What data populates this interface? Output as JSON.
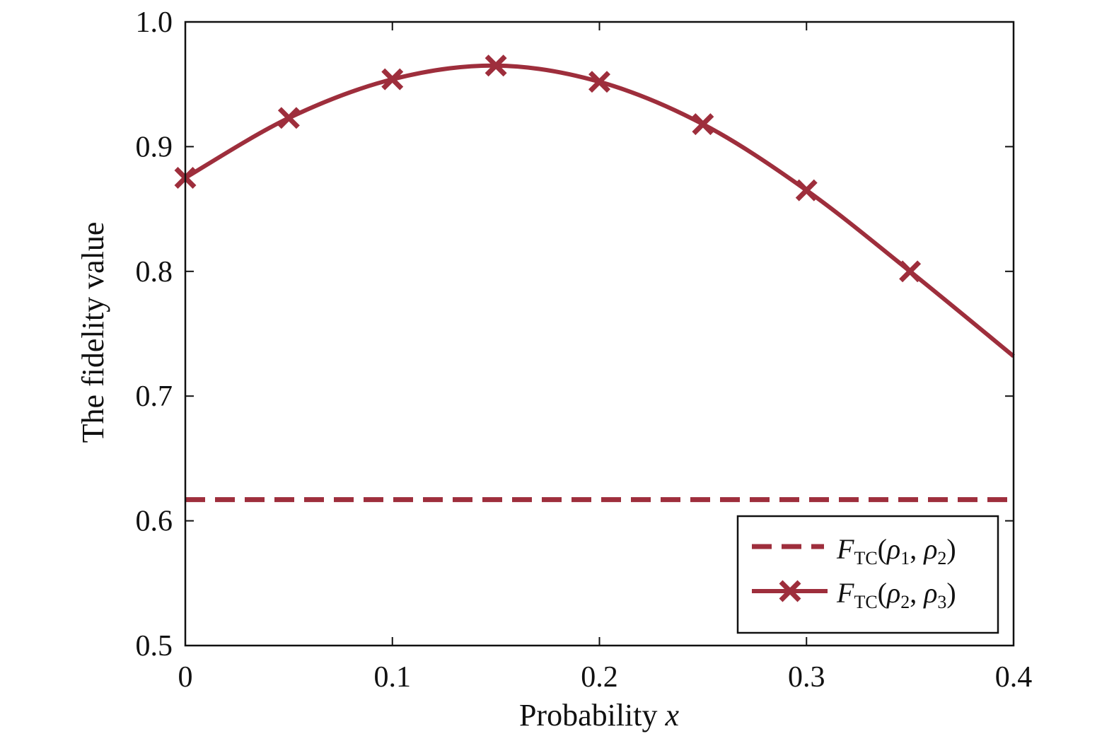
{
  "chart_data": {
    "type": "line",
    "xlabel": "Probability",
    "xlabel_var": "x",
    "ylabel": "The fidelity value",
    "xlim": [
      0,
      0.4
    ],
    "ylim": [
      0.5,
      1.0
    ],
    "x_ticks": [
      "0",
      "0.1",
      "0.2",
      "0.3",
      "0.4"
    ],
    "y_ticks": [
      "0.5",
      "0.6",
      "0.7",
      "0.8",
      "0.9",
      "1.0"
    ],
    "grid": false,
    "legend_position": "bottom-right",
    "series_color": "#9e2e3c",
    "series": [
      {
        "legend": {
          "F": "F",
          "sub": "TC",
          "a": "ρ",
          "a_sub": "1",
          "b": "ρ",
          "b_sub": "2"
        },
        "style": "dashed",
        "x": [
          0,
          0.4
        ],
        "values": [
          0.617,
          0.617
        ]
      },
      {
        "legend": {
          "F": "F",
          "sub": "TC",
          "a": "ρ",
          "a_sub": "2",
          "b": "ρ",
          "b_sub": "3"
        },
        "style": "solid",
        "marker": "x",
        "x": [
          0,
          0.05,
          0.1,
          0.15,
          0.2,
          0.25,
          0.3,
          0.35,
          0.4
        ],
        "values": [
          0.875,
          0.923,
          0.954,
          0.965,
          0.952,
          0.918,
          0.865,
          0.8,
          0.732
        ],
        "marker_x": [
          0,
          0.05,
          0.1,
          0.15,
          0.2,
          0.25,
          0.3,
          0.35
        ],
        "marker_values": [
          0.875,
          0.923,
          0.954,
          0.965,
          0.952,
          0.918,
          0.865,
          0.8
        ]
      }
    ]
  }
}
